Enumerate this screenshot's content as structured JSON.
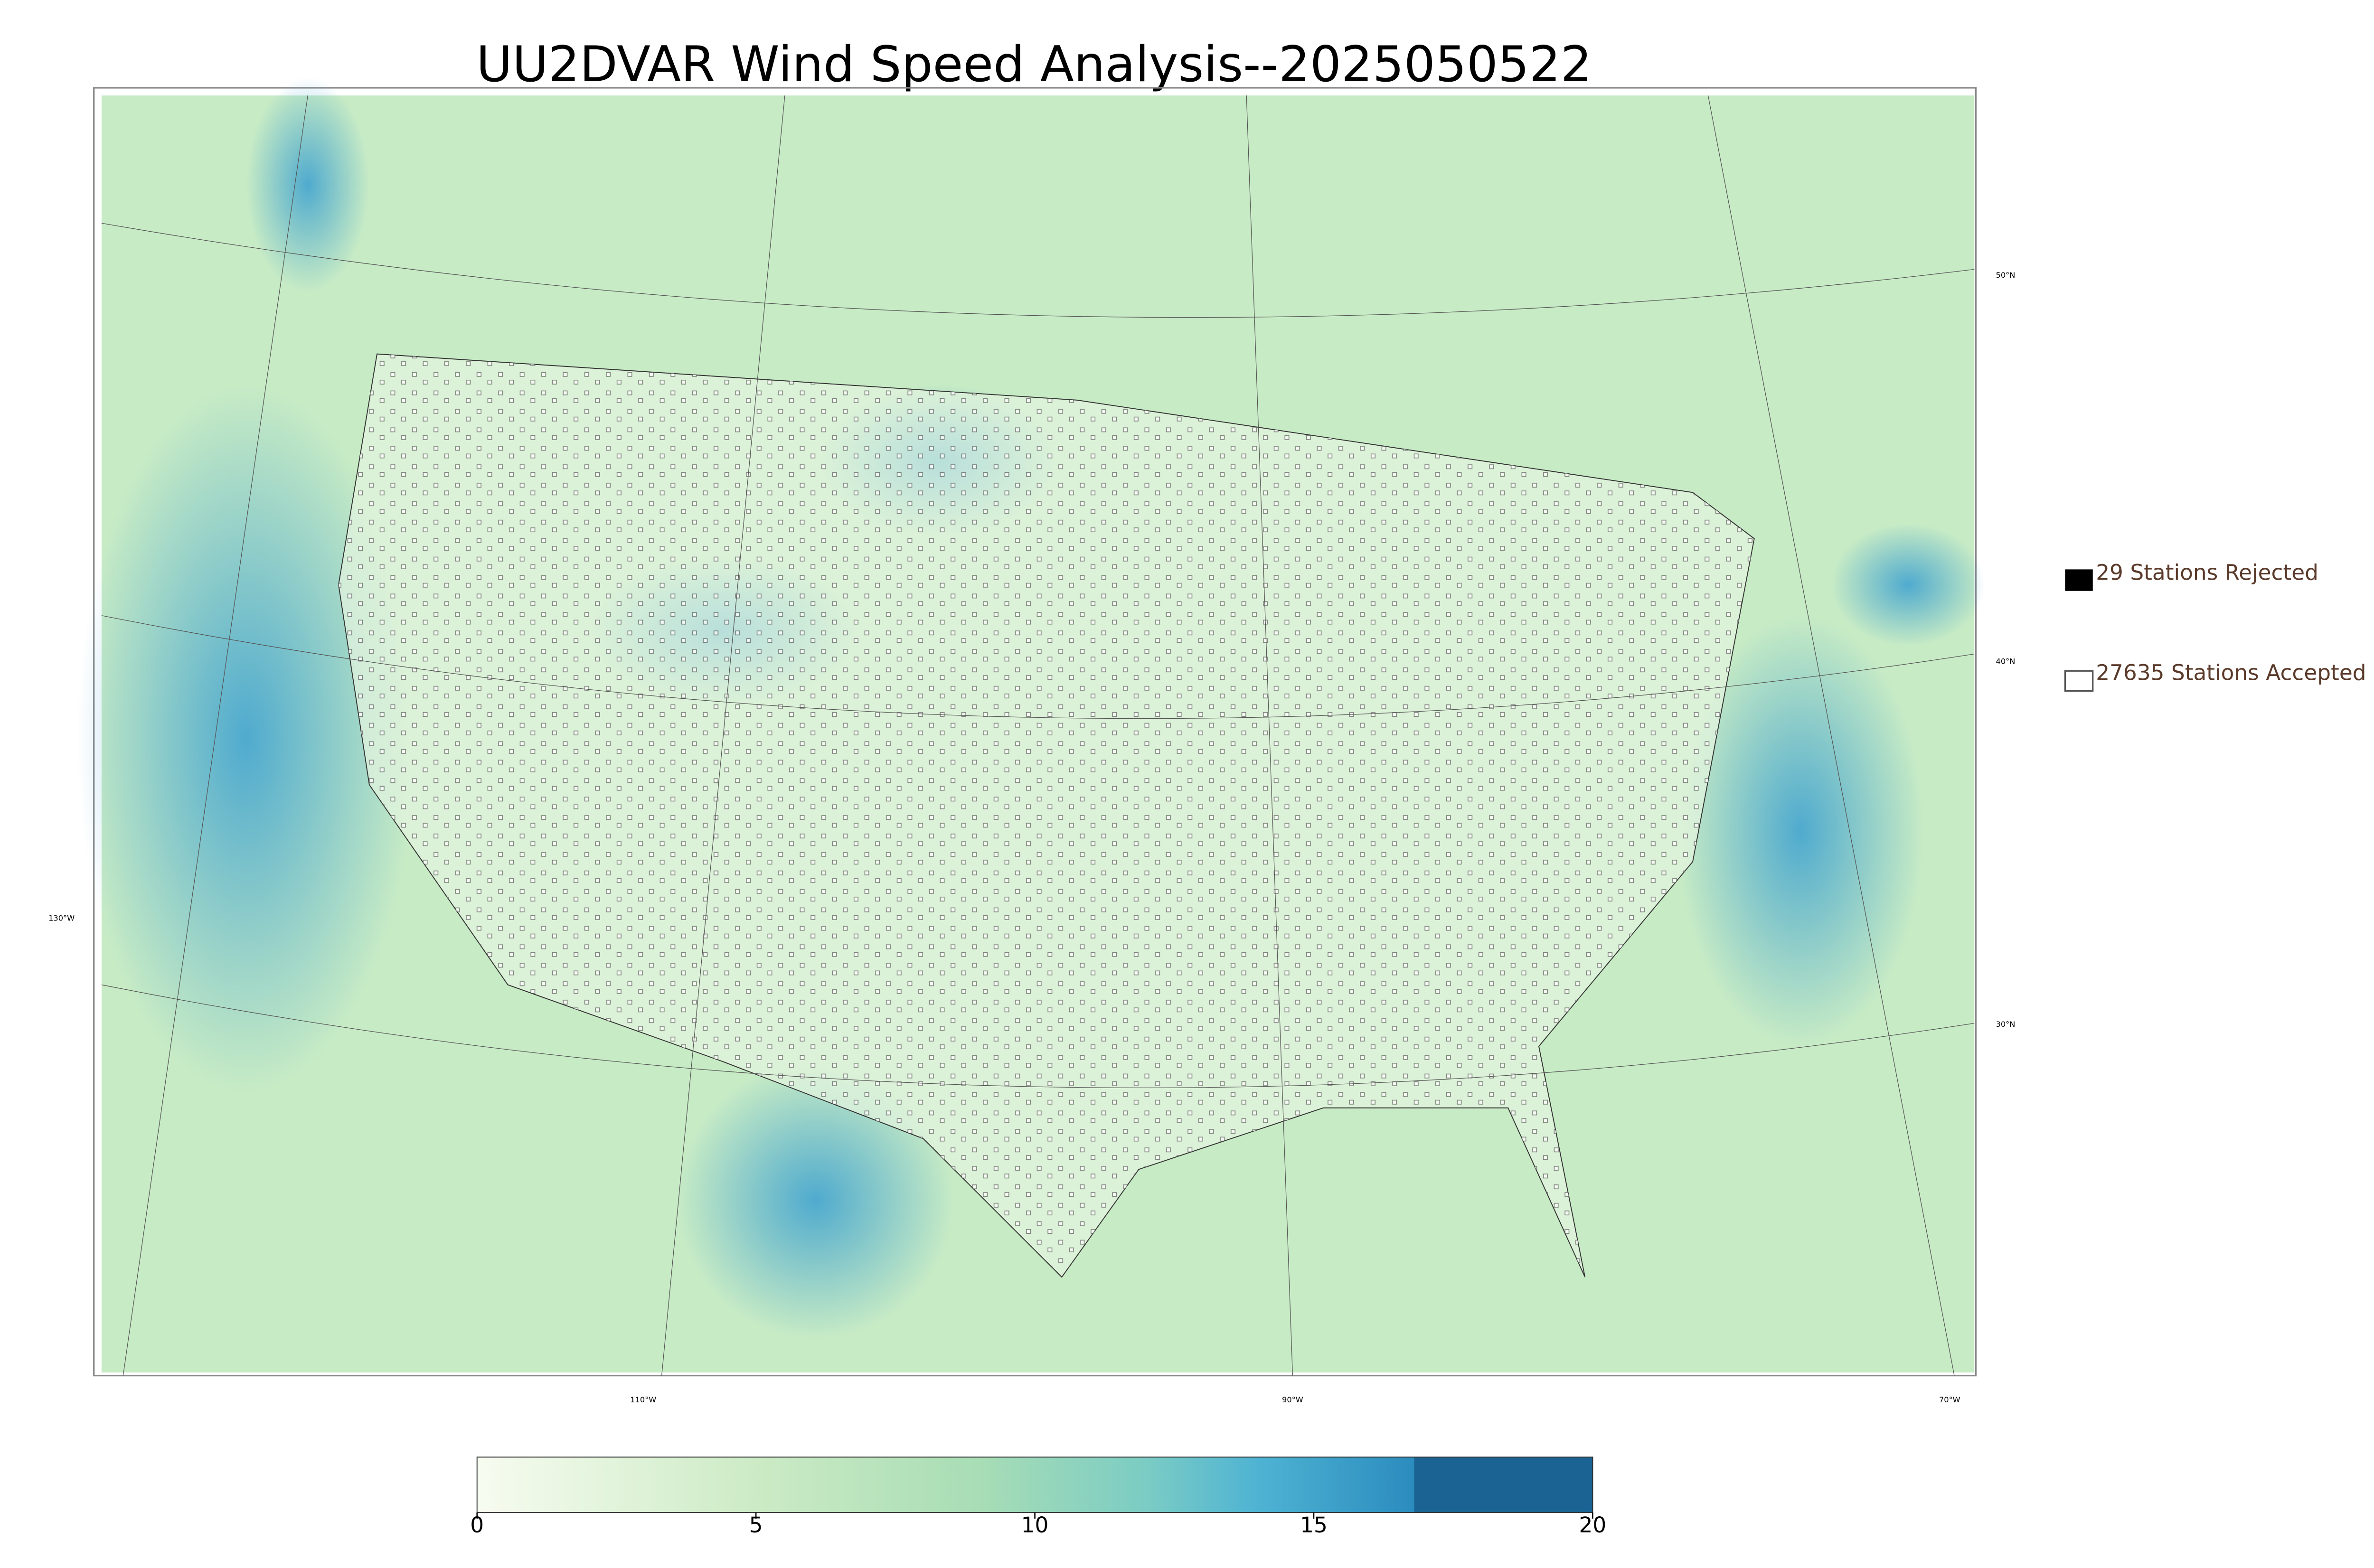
{
  "title": "UU2DVAR Wind Speed Analysis--2025050522",
  "legend": {
    "items": [
      {
        "label": "29 Stations Rejected"
      },
      {
        "label": "27635 Stations Accepted"
      }
    ]
  },
  "graticule": {
    "latitudes": [
      "50°N",
      "40°N",
      "30°N"
    ],
    "longitudes": [
      "130°W",
      "110°W",
      "90°W",
      "70°W"
    ]
  },
  "colorbar": {
    "lim": [
      0,
      20
    ],
    "ticks": [
      0,
      5,
      10,
      15,
      20
    ]
  }
}
